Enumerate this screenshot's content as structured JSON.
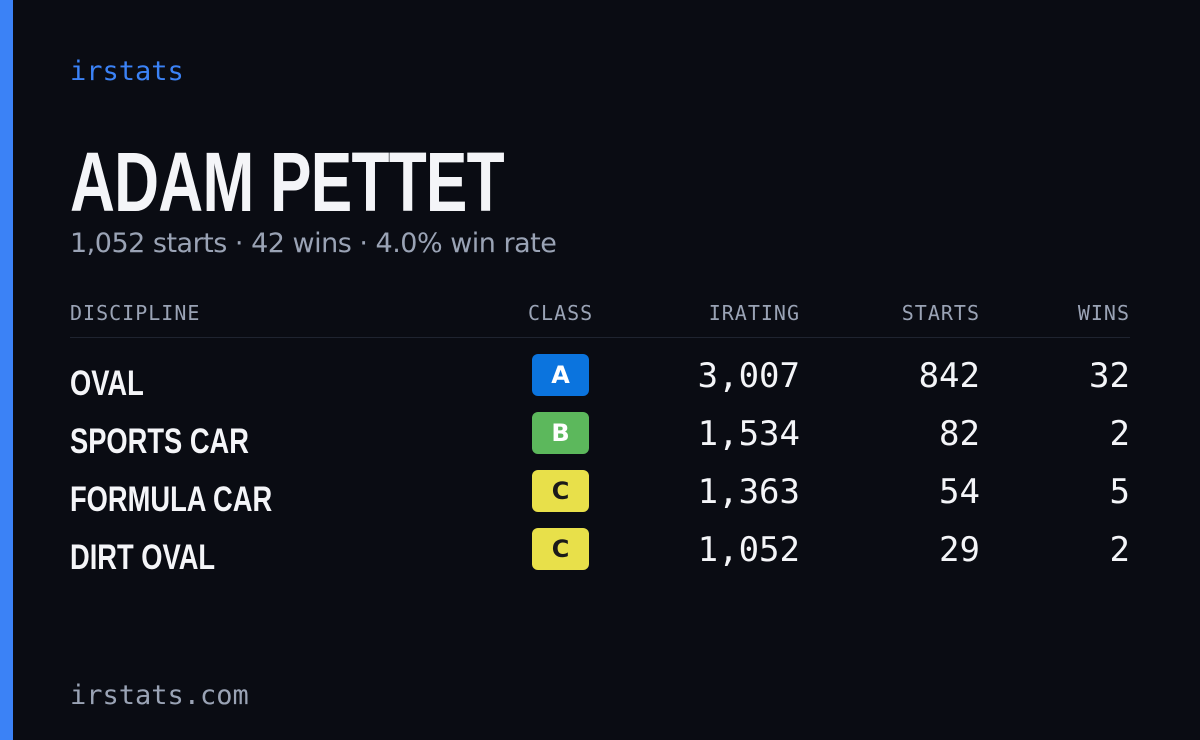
{
  "brand": "irstats",
  "driver": {
    "name": "ADAM PETTET",
    "summary": "1,052 starts · 42 wins · 4.0% win rate"
  },
  "table": {
    "headers": [
      "DISCIPLINE",
      "CLASS",
      "IRATING",
      "STARTS",
      "WINS"
    ],
    "rows": [
      {
        "discipline": "OVAL",
        "class": "A",
        "class_color": "#0b74de",
        "class_text_color": "#ffffff",
        "irating": "3,007",
        "starts": "842",
        "wins": "32"
      },
      {
        "discipline": "SPORTS CAR",
        "class": "B",
        "class_color": "#5cb85c",
        "class_text_color": "#ffffff",
        "irating": "1,534",
        "starts": "82",
        "wins": "2"
      },
      {
        "discipline": "FORMULA CAR",
        "class": "C",
        "class_color": "#e8e04a",
        "class_text_color": "#1a1a1a",
        "irating": "1,363",
        "starts": "54",
        "wins": "5"
      },
      {
        "discipline": "DIRT OVAL",
        "class": "C",
        "class_color": "#e8e04a",
        "class_text_color": "#1a1a1a",
        "irating": "1,052",
        "starts": "29",
        "wins": "2"
      }
    ]
  },
  "footer": "irstats.com"
}
